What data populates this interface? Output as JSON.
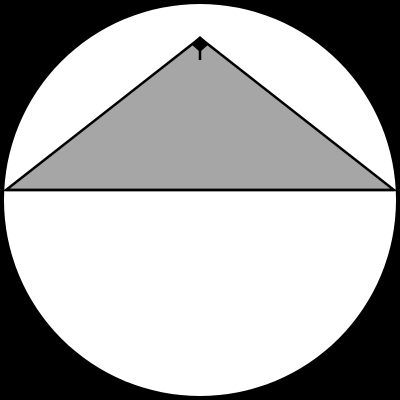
{
  "figure": {
    "background_color": "#000000",
    "disc_color": "#ffffff",
    "triangle_fill": "#a6a6a6",
    "stroke_color": "#000000",
    "shape_description_icons": [
      "circle",
      "isosceles-triangle",
      "right-angle-marker"
    ]
  }
}
